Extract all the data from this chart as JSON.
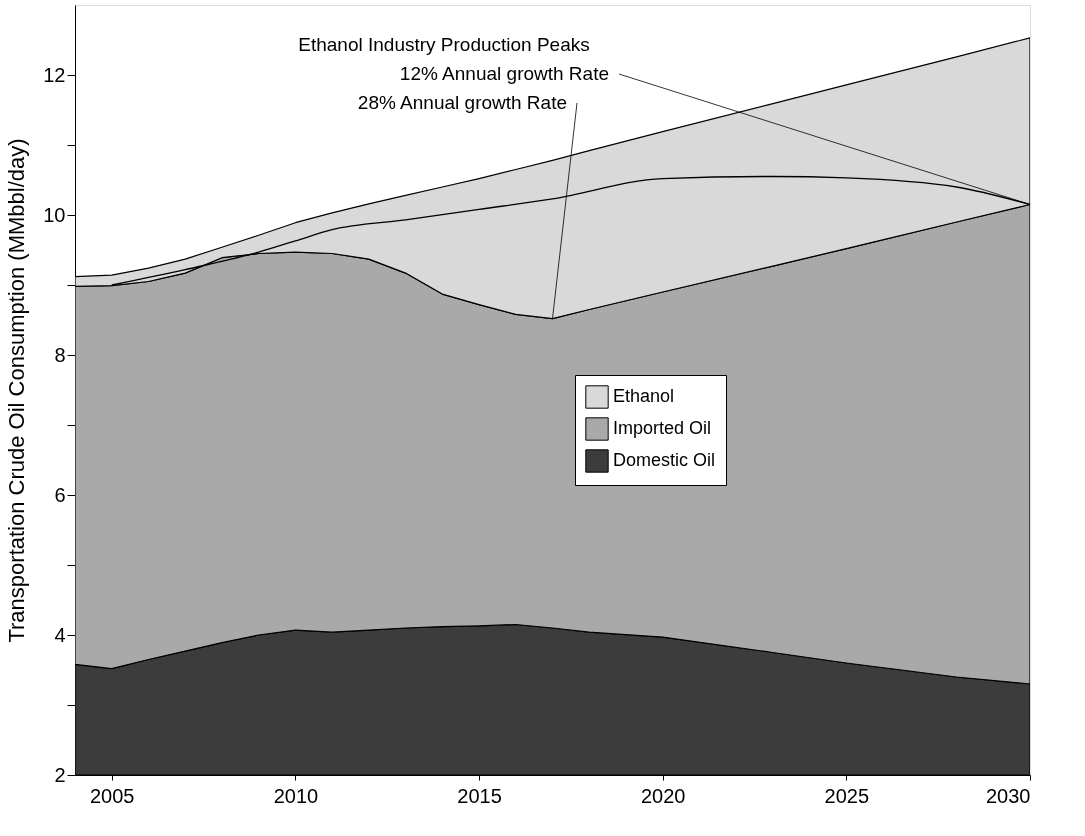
{
  "chart_data": {
    "type": "area",
    "ylabel": "Transportation Crude Oil Consumption (MMbbl/day)",
    "xlim": [
      2004,
      2030
    ],
    "xticks": [
      2005,
      2010,
      2015,
      2020,
      2025,
      2030
    ],
    "ylim": [
      2,
      13
    ],
    "yticks": [
      2,
      {
        "value": 3,
        "label": null
      },
      4,
      {
        "value": 5,
        "label": null
      },
      6,
      {
        "value": 7,
        "label": null
      },
      8,
      {
        "value": 9,
        "label": null
      },
      10,
      {
        "value": 11,
        "label": null
      },
      12
    ],
    "grid": false,
    "legend": "right",
    "x": [
      2004,
      2005,
      2006,
      2007,
      2008,
      2009,
      2010,
      2011,
      2012,
      2013,
      2014,
      2015,
      2016,
      2017,
      2018,
      2020,
      2023,
      2025,
      2028,
      2030
    ],
    "series": [
      {
        "name": "Domestic Oil",
        "color": "#3c3c3c",
        "values": [
          3.58,
          3.52,
          3.65,
          3.77,
          3.89,
          4.0,
          4.07,
          4.04,
          4.07,
          4.1,
          4.12,
          4.13,
          4.15,
          4.1,
          4.04,
          3.97,
          3.75,
          3.6,
          3.4,
          3.3
        ]
      },
      {
        "name": "Imported Oil",
        "color": "#a9a9a9",
        "values": [
          8.98,
          8.99,
          9.05,
          9.17,
          9.39,
          9.45,
          9.47,
          9.45,
          9.37,
          9.17,
          8.87,
          8.72,
          8.58,
          8.52,
          8.65,
          8.9,
          9.27,
          9.52,
          9.9,
          10.15
        ]
      },
      {
        "name": "Ethanol",
        "color": "#d9d9d9",
        "values": [
          9.12,
          9.14,
          9.24,
          9.37,
          9.54,
          9.71,
          9.89,
          10.03,
          10.16,
          10.28,
          10.4,
          10.52,
          10.65,
          10.78,
          10.92,
          11.19,
          11.59,
          11.86,
          12.26,
          12.53
        ]
      },
      {
        "type": "line",
        "color": "#000000",
        "x": [
          2005,
          2007,
          2009,
          2010,
          2011,
          2013,
          2015,
          2017,
          2020,
          2023,
          2025,
          2028,
          2030
        ],
        "values": [
          9.0,
          9.22,
          9.47,
          9.63,
          9.79,
          9.93,
          10.08,
          10.23,
          10.52,
          10.55,
          10.53,
          10.4,
          10.15
        ]
      }
    ],
    "annotations": [
      "Ethanol Industry Production Peaks",
      {
        "text": "12% Annual growth Rate",
        "x": 2030,
        "y": 10.15
      },
      {
        "text": "28% Annual growth Rate",
        "x": 2017,
        "y": 8.52
      }
    ]
  }
}
